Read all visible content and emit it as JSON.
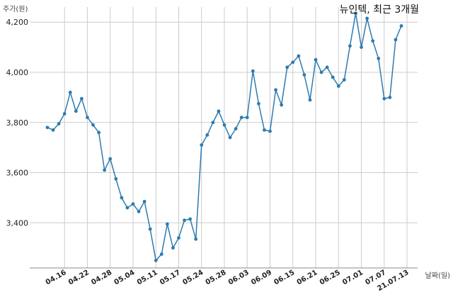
{
  "chart_data": {
    "type": "line",
    "title": "뉴인텍, 최근 3개월",
    "xlabel": "날짜(일)",
    "ylabel": "주가(원)",
    "ylim": [
      3220,
      4260
    ],
    "yticks": [
      3400,
      3600,
      3800,
      4000,
      4200
    ],
    "ytick_labels": [
      "3,400",
      "3,600",
      "3,800",
      "4,000",
      "4,200"
    ],
    "xtick_labels": [
      "04.16",
      "04.22",
      "04.28",
      "05.04",
      "05.11",
      "05.17",
      "05.24",
      "05.28",
      "06.03",
      "06.09",
      "06.15",
      "06.21",
      "06.25",
      "07.01",
      "07.07",
      "21.07.13"
    ],
    "xtick_positions": [
      3,
      7,
      11,
      15,
      19,
      23,
      27,
      31,
      35,
      39,
      43,
      47,
      51,
      55,
      59,
      63
    ],
    "grid": true,
    "color": "#2e7bb0",
    "series": [
      {
        "values": [
          3780,
          3770,
          3795,
          3835,
          3920,
          3845,
          3895,
          3820,
          3790,
          3760,
          3610,
          3655,
          3575,
          3500,
          3460,
          3475,
          3445,
          3485,
          3375,
          3250,
          3275,
          3395,
          3300,
          3340,
          3410,
          3415,
          3335,
          3710,
          3750,
          3800,
          3845,
          3790,
          3740,
          3775,
          3820,
          3820,
          4005,
          3875,
          3770,
          3765,
          3930,
          3870,
          4020,
          4040,
          4065,
          3990,
          3890,
          4050,
          4000,
          4020,
          3980,
          3945,
          3970,
          4105,
          4235,
          4100,
          4215,
          4125,
          4055,
          3895,
          3900,
          4130,
          4185
        ]
      }
    ]
  }
}
